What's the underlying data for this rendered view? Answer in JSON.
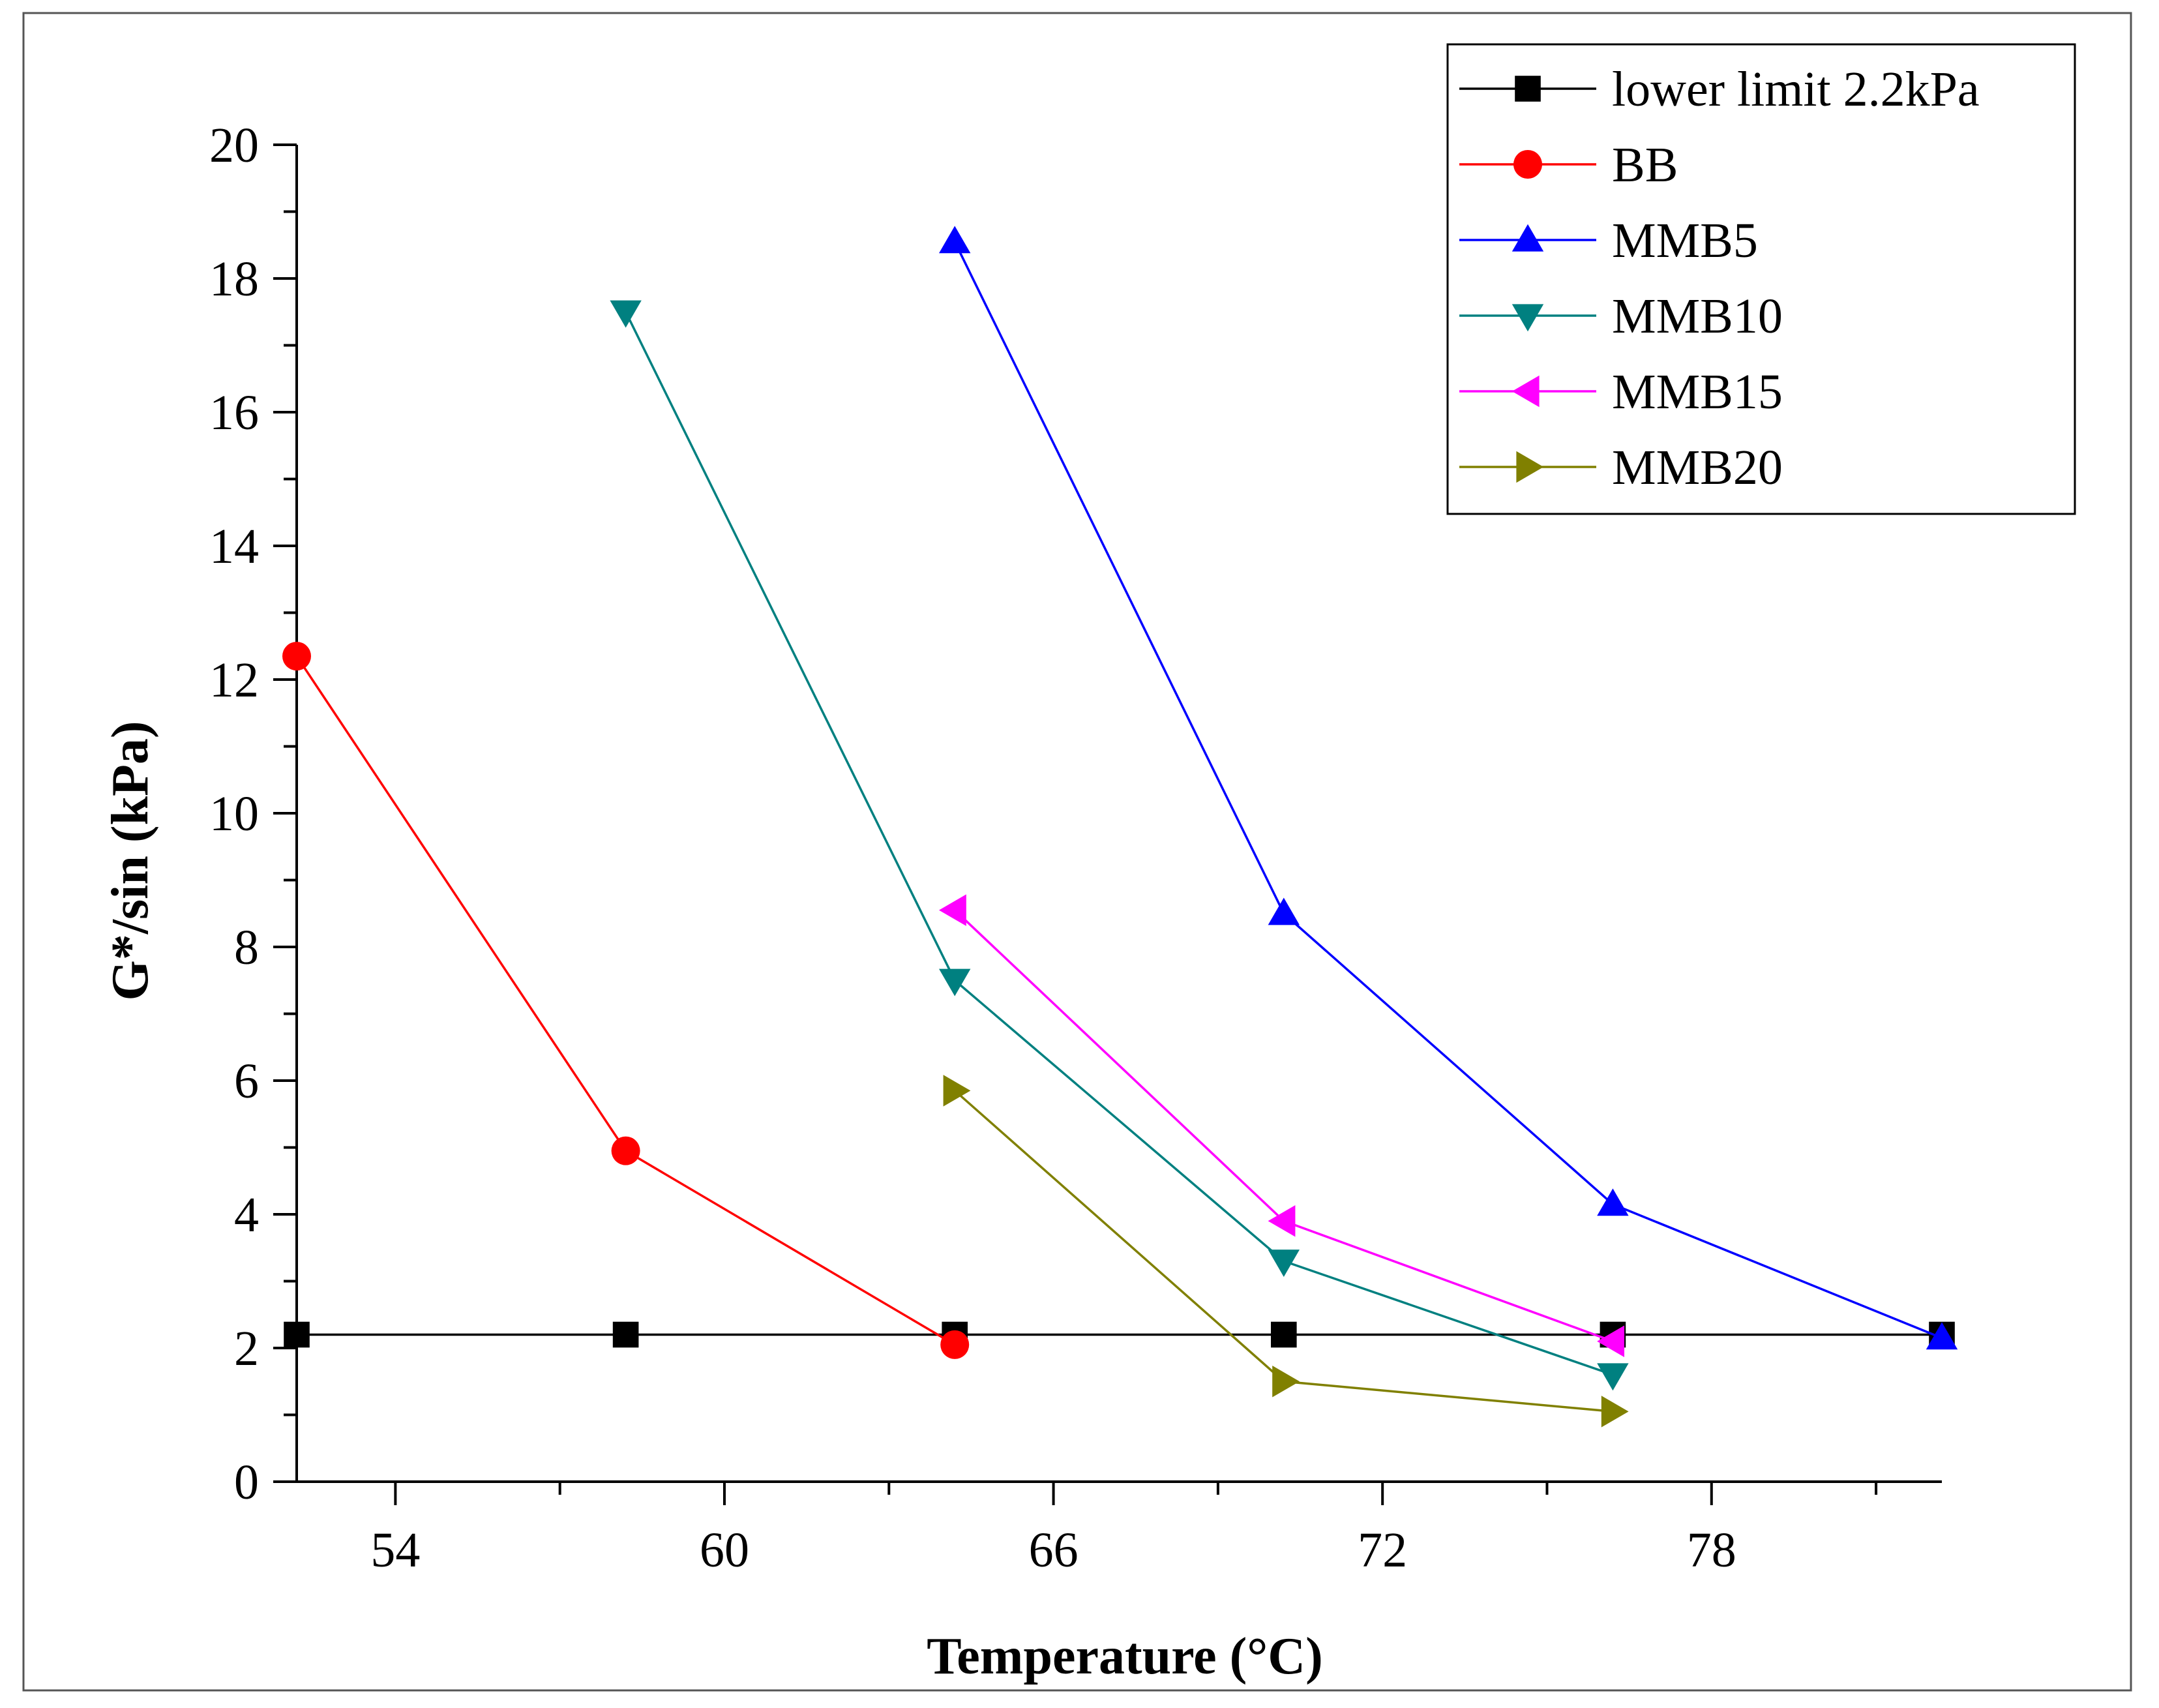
{
  "chart_data": {
    "type": "line",
    "title": "",
    "xlabel": "Temperature (°C)",
    "ylabel": "G*/sin (kPa)",
    "xlim": [
      52.2,
      82.2
    ],
    "ylim": [
      0,
      20
    ],
    "xticks": [
      54,
      60,
      66,
      72,
      78
    ],
    "yticks": [
      0,
      2,
      4,
      6,
      8,
      10,
      12,
      14,
      16,
      18,
      20
    ],
    "xtick_labels": [
      "54",
      "60",
      "66",
      "72",
      "78"
    ],
    "ytick_labels": [
      "0",
      "2",
      "4",
      "6",
      "8",
      "10",
      "12",
      "14",
      "16",
      "18",
      "20"
    ],
    "grid": false,
    "legend_position": "top-right",
    "series": [
      {
        "name": "lower limit 2.2kPa",
        "color": "#000000",
        "marker": "square",
        "x": [
          52.2,
          58.2,
          64.2,
          70.2,
          76.2,
          82.2
        ],
        "y": [
          2.2,
          2.2,
          2.2,
          2.2,
          2.2,
          2.2
        ]
      },
      {
        "name": "BB",
        "color": "#ff0000",
        "marker": "circle",
        "x": [
          52.2,
          58.2,
          64.2
        ],
        "y": [
          12.35,
          4.95,
          2.05
        ]
      },
      {
        "name": "MMB5",
        "color": "#0000ff",
        "marker": "triangle-up",
        "x": [
          64.2,
          70.2,
          76.2,
          82.2
        ],
        "y": [
          18.55,
          8.5,
          4.15,
          2.15
        ]
      },
      {
        "name": "MMB10",
        "color": "#008080",
        "marker": "triangle-down",
        "x": [
          58.2,
          64.2,
          70.2,
          76.2
        ],
        "y": [
          17.5,
          7.5,
          3.3,
          1.6
        ]
      },
      {
        "name": "MMB15",
        "color": "#ff00ff",
        "marker": "triangle-left",
        "x": [
          64.2,
          70.2,
          76.2
        ],
        "y": [
          8.55,
          3.9,
          2.1
        ]
      },
      {
        "name": "MMB20",
        "color": "#808000",
        "marker": "triangle-right",
        "x": [
          64.2,
          70.2,
          76.2
        ],
        "y": [
          5.85,
          1.5,
          1.05
        ]
      }
    ]
  }
}
